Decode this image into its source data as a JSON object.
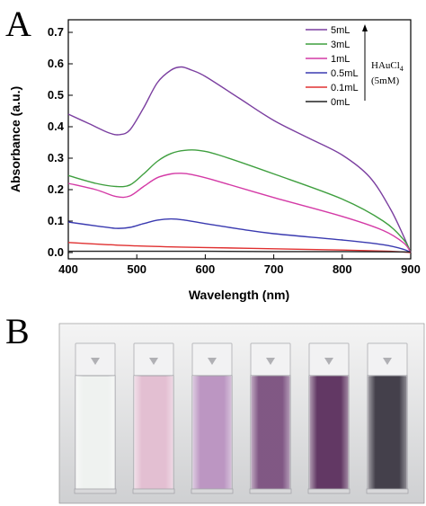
{
  "panels": {
    "a_label": "A",
    "b_label": "B"
  },
  "chart_data": {
    "type": "line",
    "title": "",
    "xlabel": "Wavelength (nm)",
    "ylabel": "Absorbance (a.u.)",
    "xlim": [
      400,
      900
    ],
    "ylim": [
      -0.02,
      0.74
    ],
    "xticks": [
      400,
      500,
      600,
      700,
      800,
      900
    ],
    "yticks": [
      0.0,
      0.1,
      0.2,
      0.3,
      0.4,
      0.5,
      0.6,
      0.7
    ],
    "grid": false,
    "legend_position": "top-right",
    "annotation": {
      "line1": "HAuCl",
      "subscript": "4",
      "line2": "(5mM)",
      "arrow_direction": "up"
    },
    "series": [
      {
        "name": "5mL",
        "color": "#7b3fa0",
        "x": [
          400,
          430,
          460,
          475,
          490,
          510,
          530,
          550,
          565,
          580,
          600,
          650,
          700,
          750,
          800,
          840,
          870,
          890,
          900
        ],
        "y": [
          0.44,
          0.41,
          0.38,
          0.375,
          0.39,
          0.46,
          0.54,
          0.58,
          0.59,
          0.58,
          0.56,
          0.49,
          0.42,
          0.365,
          0.31,
          0.24,
          0.14,
          0.05,
          0.0
        ]
      },
      {
        "name": "3mL",
        "color": "#3f9f3f",
        "x": [
          400,
          440,
          470,
          490,
          510,
          530,
          550,
          570,
          590,
          620,
          700,
          800,
          860,
          890,
          900
        ],
        "y": [
          0.245,
          0.22,
          0.21,
          0.215,
          0.25,
          0.29,
          0.315,
          0.325,
          0.325,
          0.31,
          0.25,
          0.17,
          0.1,
          0.04,
          0.0
        ]
      },
      {
        "name": "1mL",
        "color": "#d43aa6",
        "x": [
          400,
          440,
          470,
          490,
          510,
          530,
          550,
          565,
          580,
          610,
          700,
          800,
          860,
          890,
          900
        ],
        "y": [
          0.22,
          0.2,
          0.178,
          0.18,
          0.21,
          0.238,
          0.25,
          0.252,
          0.248,
          0.232,
          0.175,
          0.115,
          0.07,
          0.03,
          0.0
        ]
      },
      {
        "name": "0.5mL",
        "color": "#3a3ab0",
        "x": [
          400,
          440,
          470,
          490,
          510,
          530,
          550,
          570,
          600,
          650,
          700,
          800,
          860,
          890,
          900
        ],
        "y": [
          0.097,
          0.085,
          0.077,
          0.08,
          0.092,
          0.103,
          0.107,
          0.103,
          0.092,
          0.075,
          0.06,
          0.04,
          0.025,
          0.01,
          0.0
        ]
      },
      {
        "name": "0.1mL",
        "color": "#e03030",
        "x": [
          400,
          450,
          500,
          550,
          600,
          700,
          800,
          870,
          900
        ],
        "y": [
          0.032,
          0.026,
          0.021,
          0.018,
          0.016,
          0.012,
          0.008,
          0.004,
          0.0
        ]
      },
      {
        "name": "0mL",
        "color": "#222222",
        "x": [
          400,
          500,
          600,
          700,
          800,
          900
        ],
        "y": [
          0.004,
          0.004,
          0.004,
          0.003,
          0.003,
          0.002
        ]
      }
    ]
  },
  "photo": {
    "cuvettes": [
      {
        "tint": "#eef1ef"
      },
      {
        "tint": "#e2bcd0"
      },
      {
        "tint": "#b891bf"
      },
      {
        "tint": "#7a4f7e"
      },
      {
        "tint": "#5a2e5c"
      },
      {
        "tint": "#3a3642"
      }
    ]
  }
}
